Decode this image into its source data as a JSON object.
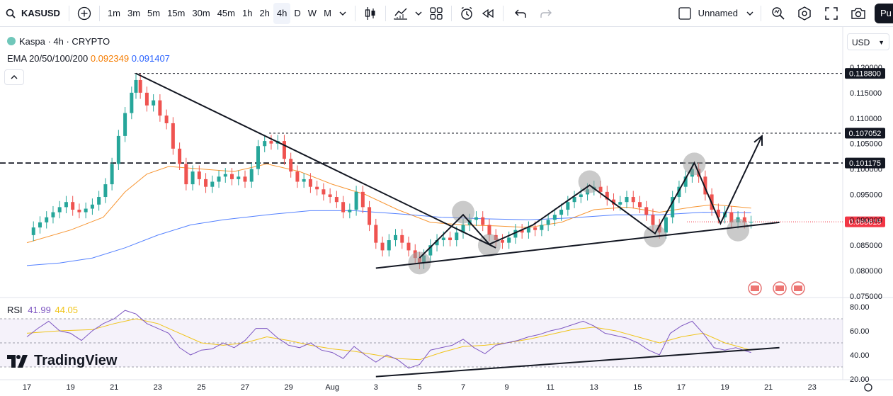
{
  "toolbar": {
    "symbol": "KASUSD",
    "intervals": [
      "1m",
      "3m",
      "5m",
      "15m",
      "30m",
      "45m",
      "1h",
      "2h",
      "4h",
      "D",
      "W",
      "M"
    ],
    "active_interval": "4h",
    "layout_name": "Unnamed",
    "publish_label": "Pu",
    "icons": [
      "search-icon",
      "add-compare-icon",
      "chevron-down-icon",
      "candle-type-icon",
      "indicators-icon",
      "templates-icon",
      "alert-icon",
      "replay-icon",
      "undo-icon",
      "redo-icon",
      "layout-checkbox-icon",
      "quick-search-icon",
      "settings-icon",
      "fullscreen-icon",
      "camera-icon"
    ]
  },
  "legend": {
    "title": "Kaspa · 4h · CRYPTO",
    "ema_label": "EMA 20/50/100/200",
    "ema_value_1": "0.092349",
    "ema_value_2": "0.091407",
    "rsi_label": "RSI",
    "rsi_value_1": "41.99",
    "rsi_value_2": "44.05"
  },
  "currency": "USD",
  "brand": "TradingView",
  "colors": {
    "up": "#26a69a",
    "down": "#ef5350",
    "ema_orange": "#f57c00",
    "ema_blue": "#2962ff",
    "rsi_line": "#7e57c2",
    "rsi_ma": "#f0c419",
    "price_badge": "#f23645"
  },
  "chart_data": {
    "type": "candlestick",
    "symbol": "KASUSD",
    "interval": "4h",
    "x_tick_labels": [
      "17",
      "19",
      "21",
      "23",
      "25",
      "27",
      "29",
      "Aug",
      "3",
      "5",
      "7",
      "9",
      "11",
      "13",
      "15",
      "17",
      "19",
      "21",
      "23"
    ],
    "y_tick_labels": [
      "0.120000",
      "0.115000",
      "0.110000",
      "0.105000",
      "0.100000",
      "0.095000",
      "0.090000",
      "0.085000",
      "0.080000",
      "0.075000"
    ],
    "ylim": [
      0.075,
      0.1215
    ],
    "price_levels": [
      {
        "label": "0.118800",
        "value": 0.1188,
        "style": "dotted"
      },
      {
        "label": "0.107052",
        "value": 0.107052,
        "style": "dotted"
      },
      {
        "label": "0.101175",
        "value": 0.101175,
        "style": "dashed"
      }
    ],
    "last_price": {
      "label": "0.089615",
      "value": 0.089615
    },
    "close_path": [
      [
        17.0,
        0.087
      ],
      [
        17.3,
        0.0885
      ],
      [
        17.6,
        0.0895
      ],
      [
        17.9,
        0.0905
      ],
      [
        18.2,
        0.0915
      ],
      [
        18.5,
        0.0925
      ],
      [
        18.8,
        0.0935
      ],
      [
        19.1,
        0.092
      ],
      [
        19.4,
        0.0915
      ],
      [
        19.7,
        0.0922
      ],
      [
        20.0,
        0.093
      ],
      [
        20.3,
        0.0945
      ],
      [
        20.6,
        0.097
      ],
      [
        20.9,
        0.101
      ],
      [
        21.2,
        0.1065
      ],
      [
        21.5,
        0.111
      ],
      [
        21.8,
        0.115
      ],
      [
        22.0,
        0.1175
      ],
      [
        22.2,
        0.115
      ],
      [
        22.5,
        0.1125
      ],
      [
        22.8,
        0.1135
      ],
      [
        23.1,
        0.1105
      ],
      [
        23.4,
        0.109
      ],
      [
        23.7,
        0.104
      ],
      [
        24.0,
        0.101
      ],
      [
        24.3,
        0.097
      ],
      [
        24.6,
        0.0995
      ],
      [
        24.9,
        0.098
      ],
      [
        25.2,
        0.0965
      ],
      [
        25.5,
        0.0975
      ],
      [
        25.8,
        0.0985
      ],
      [
        26.1,
        0.099
      ],
      [
        26.4,
        0.098
      ],
      [
        26.7,
        0.0985
      ],
      [
        27.0,
        0.0975
      ],
      [
        27.3,
        0.1
      ],
      [
        27.6,
        0.1045
      ],
      [
        27.9,
        0.1055
      ],
      [
        28.2,
        0.105
      ],
      [
        28.5,
        0.1055
      ],
      [
        28.8,
        0.102
      ],
      [
        29.1,
        0.0995
      ],
      [
        29.4,
        0.0975
      ],
      [
        29.7,
        0.098
      ],
      [
        30.0,
        0.0965
      ],
      [
        30.3,
        0.096
      ],
      [
        30.6,
        0.095
      ],
      [
        30.9,
        0.0945
      ],
      [
        31.2,
        0.0935
      ],
      [
        31.5,
        0.0915
      ],
      [
        31.8,
        0.092
      ],
      [
        32.1,
        0.0955
      ],
      [
        32.4,
        0.0925
      ],
      [
        32.7,
        0.089
      ],
      [
        33.0,
        0.0855
      ],
      [
        33.3,
        0.084
      ],
      [
        33.6,
        0.086
      ],
      [
        33.9,
        0.087
      ],
      [
        34.2,
        0.0855
      ],
      [
        34.5,
        0.084
      ],
      [
        34.8,
        0.0825
      ],
      [
        35.0,
        0.0815
      ],
      [
        35.2,
        0.083
      ],
      [
        35.5,
        0.085
      ],
      [
        35.8,
        0.086
      ],
      [
        36.1,
        0.0865
      ],
      [
        36.4,
        0.086
      ],
      [
        36.7,
        0.0875
      ],
      [
        37.0,
        0.089
      ],
      [
        37.3,
        0.09
      ],
      [
        37.6,
        0.0905
      ],
      [
        37.9,
        0.089
      ],
      [
        38.2,
        0.087
      ],
      [
        38.5,
        0.086
      ],
      [
        38.8,
        0.0855
      ],
      [
        39.1,
        0.0865
      ],
      [
        39.4,
        0.088
      ],
      [
        39.7,
        0.0875
      ],
      [
        40.0,
        0.0885
      ],
      [
        40.3,
        0.088
      ],
      [
        40.6,
        0.089
      ],
      [
        40.9,
        0.09
      ],
      [
        41.2,
        0.091
      ],
      [
        41.5,
        0.092
      ],
      [
        41.8,
        0.0935
      ],
      [
        42.1,
        0.0945
      ],
      [
        42.4,
        0.095
      ],
      [
        42.7,
        0.096
      ],
      [
        43.0,
        0.0965
      ],
      [
        43.3,
        0.0955
      ],
      [
        43.6,
        0.094
      ],
      [
        43.9,
        0.093
      ],
      [
        44.2,
        0.0935
      ],
      [
        44.5,
        0.0945
      ],
      [
        44.8,
        0.0935
      ],
      [
        45.1,
        0.0925
      ],
      [
        45.4,
        0.091
      ],
      [
        45.7,
        0.089
      ],
      [
        46.0,
        0.0875
      ],
      [
        46.3,
        0.0905
      ],
      [
        46.6,
        0.0945
      ],
      [
        46.9,
        0.0965
      ],
      [
        47.2,
        0.0985
      ],
      [
        47.5,
        0.1
      ],
      [
        47.8,
        0.0985
      ],
      [
        48.1,
        0.095
      ],
      [
        48.4,
        0.092
      ],
      [
        48.7,
        0.0905
      ],
      [
        49.0,
        0.0915
      ],
      [
        49.3,
        0.0895
      ],
      [
        49.6,
        0.0905
      ],
      [
        49.9,
        0.0895
      ],
      [
        50.2,
        0.0896
      ]
    ],
    "ema_orange_path": [
      [
        17.0,
        0.0855
      ],
      [
        19.0,
        0.088
      ],
      [
        20.5,
        0.0905
      ],
      [
        21.5,
        0.0955
      ],
      [
        22.5,
        0.099
      ],
      [
        23.5,
        0.1005
      ],
      [
        25.0,
        0.1
      ],
      [
        26.5,
        0.0995
      ],
      [
        28.0,
        0.101
      ],
      [
        29.5,
        0.0995
      ],
      [
        31.0,
        0.097
      ],
      [
        32.5,
        0.095
      ],
      [
        34.0,
        0.092
      ],
      [
        35.5,
        0.0895
      ],
      [
        37.0,
        0.089
      ],
      [
        38.5,
        0.0888
      ],
      [
        40.0,
        0.0885
      ],
      [
        41.5,
        0.0895
      ],
      [
        43.0,
        0.092
      ],
      [
        44.5,
        0.0925
      ],
      [
        46.0,
        0.0915
      ],
      [
        47.5,
        0.0925
      ],
      [
        48.5,
        0.093
      ],
      [
        50.2,
        0.0923
      ]
    ],
    "ema_blue_path": [
      [
        17.0,
        0.081
      ],
      [
        18.5,
        0.0815
      ],
      [
        20.0,
        0.0825
      ],
      [
        21.5,
        0.0845
      ],
      [
        23.0,
        0.087
      ],
      [
        24.5,
        0.089
      ],
      [
        26.0,
        0.09
      ],
      [
        28.0,
        0.091
      ],
      [
        30.0,
        0.0918
      ],
      [
        32.0,
        0.0918
      ],
      [
        34.0,
        0.0912
      ],
      [
        36.0,
        0.0905
      ],
      [
        38.0,
        0.0902
      ],
      [
        40.0,
        0.09
      ],
      [
        42.0,
        0.0904
      ],
      [
        44.0,
        0.091
      ],
      [
        46.0,
        0.091
      ],
      [
        48.0,
        0.0915
      ],
      [
        50.2,
        0.0914
      ]
    ],
    "drawn_lines": [
      {
        "name": "descending-trendline",
        "points": [
          [
            22.0,
            0.1188
          ],
          [
            38.5,
            0.0845
          ]
        ]
      },
      {
        "name": "ascending-trendline",
        "points": [
          [
            33.0,
            0.0805
          ],
          [
            51.5,
            0.0895
          ]
        ]
      },
      {
        "name": "zigzag-pattern",
        "points": [
          [
            35.0,
            0.0825
          ],
          [
            37.0,
            0.091
          ],
          [
            38.2,
            0.0852
          ],
          [
            40.2,
            0.089
          ],
          [
            42.8,
            0.0968
          ],
          [
            45.8,
            0.0873
          ],
          [
            47.6,
            0.1012
          ],
          [
            48.8,
            0.0893
          ],
          [
            50.7,
            0.1065
          ]
        ]
      }
    ],
    "highlight_points": [
      [
        35.0,
        0.0815
      ],
      [
        37.0,
        0.0915
      ],
      [
        38.2,
        0.085
      ],
      [
        42.8,
        0.0975
      ],
      [
        45.8,
        0.0868
      ],
      [
        47.6,
        0.101
      ],
      [
        49.6,
        0.088
      ]
    ],
    "rsi": {
      "ylim": [
        20,
        80
      ],
      "y_tick_labels": [
        "80.00",
        "60.00",
        "40.00",
        "20.00"
      ],
      "band": [
        30,
        70
      ],
      "value": 41.99,
      "ma_value": 44.05,
      "rsi_path": [
        [
          17.0,
          55
        ],
        [
          17.5,
          62
        ],
        [
          18.0,
          68
        ],
        [
          18.5,
          60
        ],
        [
          19.0,
          58
        ],
        [
          19.5,
          52
        ],
        [
          20.0,
          60
        ],
        [
          20.5,
          66
        ],
        [
          21.0,
          70
        ],
        [
          21.5,
          77
        ],
        [
          22.0,
          74
        ],
        [
          22.5,
          66
        ],
        [
          23.0,
          62
        ],
        [
          23.5,
          58
        ],
        [
          24.0,
          46
        ],
        [
          24.5,
          40
        ],
        [
          25.0,
          44
        ],
        [
          25.5,
          45
        ],
        [
          26.0,
          50
        ],
        [
          26.5,
          46
        ],
        [
          27.0,
          52
        ],
        [
          27.5,
          62
        ],
        [
          28.0,
          62
        ],
        [
          28.5,
          54
        ],
        [
          29.0,
          48
        ],
        [
          29.5,
          46
        ],
        [
          30.0,
          50
        ],
        [
          30.5,
          44
        ],
        [
          31.0,
          42
        ],
        [
          31.5,
          37
        ],
        [
          32.0,
          47
        ],
        [
          32.5,
          40
        ],
        [
          33.0,
          34
        ],
        [
          33.5,
          40
        ],
        [
          34.0,
          36
        ],
        [
          34.5,
          29
        ],
        [
          35.0,
          32
        ],
        [
          35.5,
          44
        ],
        [
          36.0,
          46
        ],
        [
          36.5,
          48
        ],
        [
          37.0,
          53
        ],
        [
          37.5,
          46
        ],
        [
          38.0,
          41
        ],
        [
          38.5,
          48
        ],
        [
          39.0,
          50
        ],
        [
          39.5,
          52
        ],
        [
          40.0,
          55
        ],
        [
          40.5,
          57
        ],
        [
          41.0,
          60
        ],
        [
          41.5,
          62
        ],
        [
          42.0,
          65
        ],
        [
          42.5,
          68
        ],
        [
          43.0,
          64
        ],
        [
          43.5,
          58
        ],
        [
          44.0,
          56
        ],
        [
          44.5,
          54
        ],
        [
          45.0,
          50
        ],
        [
          45.5,
          44
        ],
        [
          46.0,
          40
        ],
        [
          46.5,
          58
        ],
        [
          47.0,
          64
        ],
        [
          47.5,
          68
        ],
        [
          48.0,
          58
        ],
        [
          48.5,
          46
        ],
        [
          49.0,
          44
        ],
        [
          49.5,
          46
        ],
        [
          50.0,
          43
        ],
        [
          50.2,
          42
        ]
      ],
      "ma_path": [
        [
          17.0,
          58
        ],
        [
          18.5,
          60
        ],
        [
          20.0,
          61
        ],
        [
          21.0,
          66
        ],
        [
          22.0,
          70
        ],
        [
          23.0,
          66
        ],
        [
          24.0,
          58
        ],
        [
          25.0,
          50
        ],
        [
          26.0,
          48
        ],
        [
          27.0,
          50
        ],
        [
          28.0,
          55
        ],
        [
          29.0,
          52
        ],
        [
          30.0,
          48
        ],
        [
          31.0,
          45
        ],
        [
          32.0,
          43
        ],
        [
          33.0,
          40
        ],
        [
          34.0,
          37
        ],
        [
          35.0,
          36
        ],
        [
          36.0,
          42
        ],
        [
          37.0,
          47
        ],
        [
          38.0,
          48
        ],
        [
          39.0,
          50
        ],
        [
          40.0,
          53
        ],
        [
          41.0,
          57
        ],
        [
          42.0,
          61
        ],
        [
          43.0,
          63
        ],
        [
          44.0,
          60
        ],
        [
          45.0,
          55
        ],
        [
          46.0,
          50
        ],
        [
          47.0,
          55
        ],
        [
          48.0,
          58
        ],
        [
          49.0,
          50
        ],
        [
          50.2,
          44
        ]
      ],
      "trendline": [
        [
          33.0,
          22
        ],
        [
          51.5,
          46
        ]
      ]
    }
  }
}
